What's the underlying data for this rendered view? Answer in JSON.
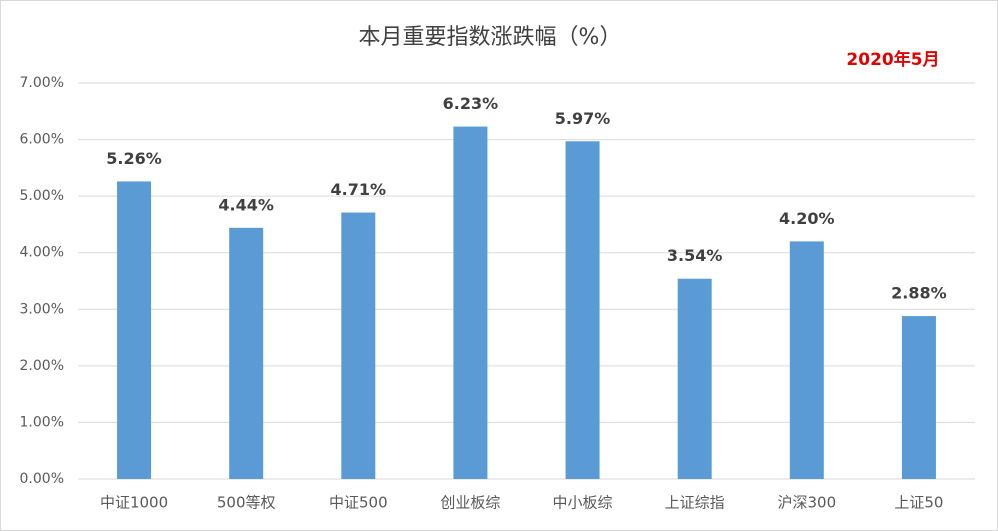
{
  "chart_data": {
    "type": "bar",
    "title": "本月重要指数涨跌幅（%）",
    "annotation": "2020年5月",
    "categories": [
      "中证1000",
      "500等权",
      "中证500",
      "创业板综",
      "中小板综",
      "上证综指",
      "沪深300",
      "上证50"
    ],
    "values": [
      5.26,
      4.44,
      4.71,
      6.23,
      5.97,
      3.54,
      4.2,
      2.88
    ],
    "value_labels": [
      "5.26%",
      "4.44%",
      "4.71%",
      "6.23%",
      "5.97%",
      "3.54%",
      "4.20%",
      "2.88%"
    ],
    "color": "#5b9bd5",
    "ylim": [
      0,
      7
    ],
    "yticks": [
      {
        "value": 0,
        "label": "0.00%"
      },
      {
        "value": 1,
        "label": "1.00%"
      },
      {
        "value": 2,
        "label": "2.00%"
      },
      {
        "value": 3,
        "label": "3.00%"
      },
      {
        "value": 4,
        "label": "4.00%"
      },
      {
        "value": 5,
        "label": "5.00%"
      },
      {
        "value": 6,
        "label": "6.00%"
      },
      {
        "value": 7,
        "label": "7.00%"
      }
    ],
    "grid": true
  }
}
